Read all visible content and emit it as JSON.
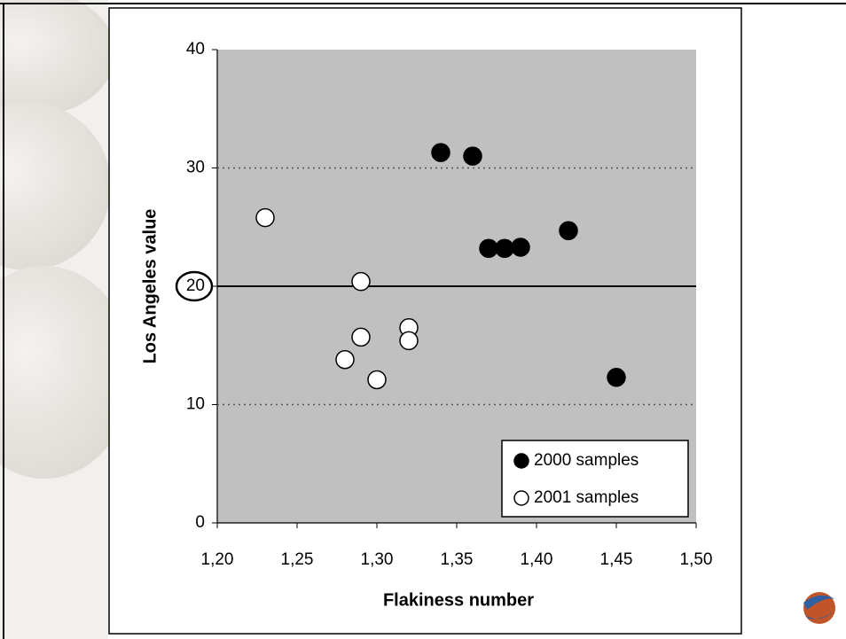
{
  "chart_data": {
    "type": "scatter",
    "x_label": "Flakiness number",
    "y_label": "Los Angeles value",
    "xlim": [
      1.2,
      1.5
    ],
    "xticks": [
      {
        "value": 1.2,
        "label": "1,20"
      },
      {
        "value": 1.25,
        "label": "1,25"
      },
      {
        "value": 1.3,
        "label": "1,30"
      },
      {
        "value": 1.35,
        "label": "1,35"
      },
      {
        "value": 1.4,
        "label": "1,40"
      },
      {
        "value": 1.45,
        "label": "1,45"
      },
      {
        "value": 1.5,
        "label": "1,50"
      }
    ],
    "ylim": [
      0,
      40
    ],
    "yticks": [
      0,
      10,
      20,
      30,
      40
    ],
    "grid": true,
    "reference_line": 20,
    "legend": "lower right",
    "series": [
      {
        "name": "2000 samples",
        "color": "#000000",
        "x": [
          1.34,
          1.36,
          1.37,
          1.38,
          1.39,
          1.42,
          1.45
        ],
        "values": [
          31.3,
          31.0,
          23.2,
          23.2,
          23.3,
          24.7,
          12.3
        ]
      },
      {
        "name": "2001 samples",
        "color": "#ffffff",
        "x": [
          1.23,
          1.29,
          1.32,
          1.29,
          1.32,
          1.28,
          1.3
        ],
        "values": [
          25.8,
          20.4,
          16.5,
          15.7,
          15.4,
          13.8,
          12.1
        ]
      }
    ]
  }
}
